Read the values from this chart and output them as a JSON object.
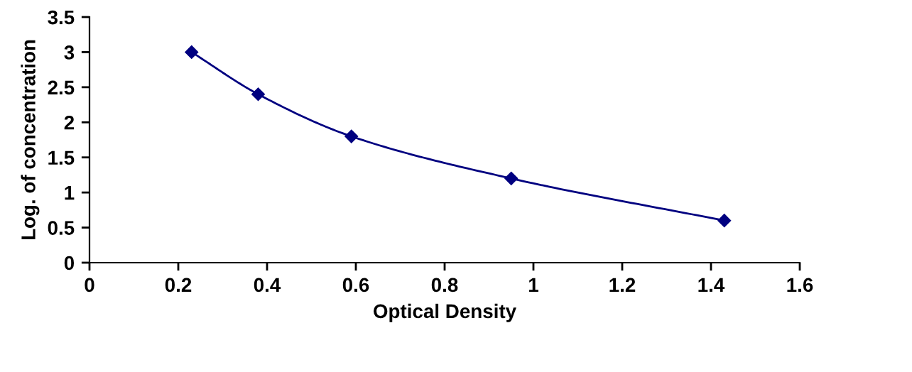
{
  "chart_data": {
    "type": "line",
    "xlabel": "Optical Density",
    "ylabel": "Log. of concentration",
    "x": [
      0.23,
      0.38,
      0.59,
      0.95,
      1.43
    ],
    "series": [
      {
        "color": "#000080",
        "values": [
          3.0,
          2.4,
          1.8,
          1.2,
          0.6
        ]
      }
    ],
    "xlim": [
      0,
      1.6
    ],
    "xticks": [
      0,
      0.2,
      0.4,
      0.6,
      0.8,
      1,
      1.2,
      1.4,
      1.6
    ],
    "ylim": [
      0,
      3.5
    ],
    "yticks": [
      0,
      0.5,
      1,
      1.5,
      2,
      2.5,
      3,
      3.5
    ],
    "marker": "diamond",
    "line_style": "solid",
    "grid": false,
    "legend": false
  }
}
